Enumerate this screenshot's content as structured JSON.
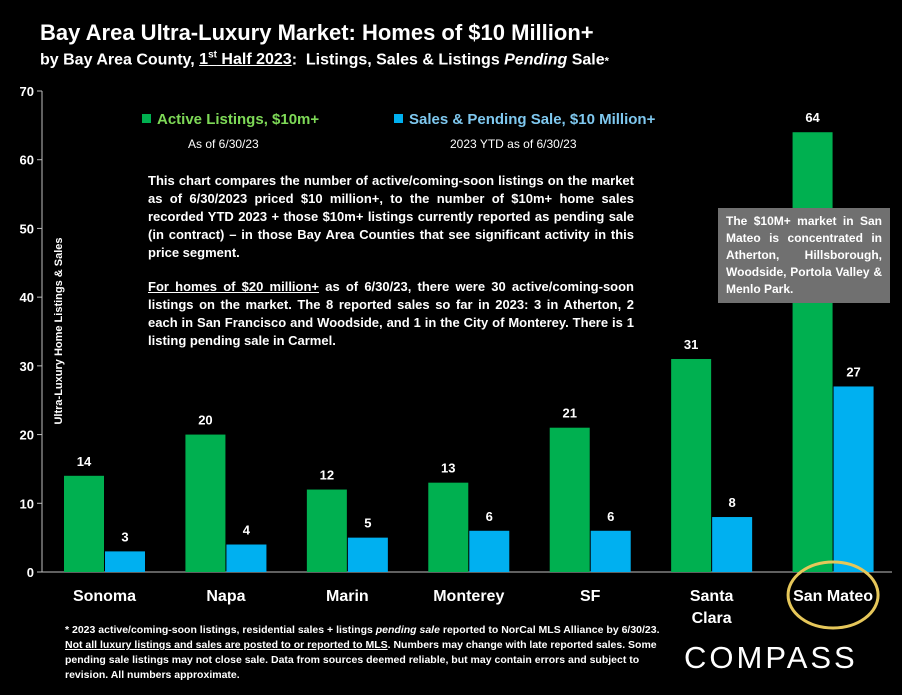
{
  "header": {
    "title": "Bay Area Ultra-Luxury Market: Homes of $10 Million+",
    "subtitle_prefix": "by Bay Area County,",
    "subtitle_half_num": "1",
    "subtitle_half_sup": "st",
    "subtitle_half_rest": " Half 2023",
    "subtitle_colon": ":",
    "subtitle_mid": "  Listings, Sales & Listings ",
    "subtitle_pending": "Pending",
    "subtitle_end": " Sale",
    "subtitle_star": "*"
  },
  "legend": {
    "active": {
      "label": "Active Listings, $10m+",
      "sub": "As of 6/30/23"
    },
    "sales": {
      "label": "Sales & Pending Sale, $10 Million+",
      "sub": "2023 YTD as of 6/30/23"
    }
  },
  "note": {
    "p1": "This chart compares the number of active/coming-soon listings on the market as of 6/30/2023 priced $10 million+, to the number of $10m+ home sales recorded YTD 2023 + those $10m+ listings currently reported as pending sale (in contract) – in those Bay Area Counties that see significant activity in this price segment.",
    "p2_underlined": "For homes of $20 million+",
    "p2_rest": " as of 6/30/23, there were 30 active/coming-soon listings on the market. The 8 reported sales so far in 2023: 3 in Atherton, 2 each in San Francisco and Woodside, and 1 in the City of Monterey. There is 1 listing pending sale in Carmel."
  },
  "callout": {
    "text": "The $10M+ market in San Mateo is concentrated in Atherton, Hillsborough, Woodside, Portola Valley & Menlo Park."
  },
  "footnote": {
    "part1": "* 2023 active/coming-soon listings, residential sales + listings ",
    "part1_italic": "pending sale",
    "part2": " reported to NorCal MLS Alliance by 6/30/23. ",
    "part2_underlined": "Not all luxury listings and sales are posted to or reported to MLS",
    "part3": ". Numbers may change with late reported sales. Some pending sale listings may not close sale. Data from sources deemed reliable, but may contain errors and subject to revision. All numbers approximate."
  },
  "logo": {
    "text": "COMPASS"
  },
  "chart_data": {
    "type": "bar",
    "categories": [
      "Sonoma",
      "Napa",
      "Marin",
      "Monterey",
      "SF",
      "Santa Clara",
      "San Mateo"
    ],
    "series": [
      {
        "name": "Active Listings, $10m+",
        "values": [
          14,
          20,
          12,
          13,
          21,
          31,
          64
        ],
        "color": "#00b050"
      },
      {
        "name": "Sales & Pending Sale, $10 Million+",
        "values": [
          3,
          4,
          5,
          6,
          6,
          8,
          27
        ],
        "color": "#00b0f0"
      }
    ],
    "ylabel": "Ultra-Luxury Home Listings & Sales",
    "ylim": [
      0,
      70
    ],
    "yticks": [
      0,
      10,
      20,
      30,
      40,
      50,
      60,
      70
    ],
    "grid": false,
    "highlight_category": "San Mateo",
    "highlight_color": "#e6c75a"
  }
}
